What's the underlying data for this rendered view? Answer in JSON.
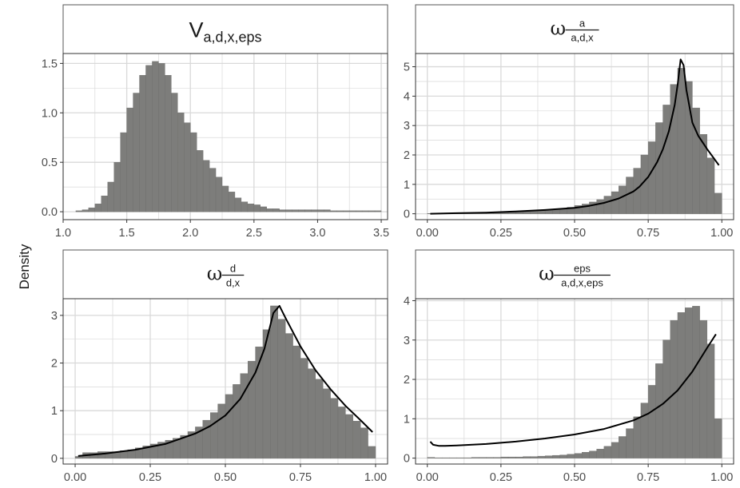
{
  "y_axis_label": "Density",
  "colors": {
    "bar_fill": "#7d7d7b",
    "bar_stroke": "#6e6e6c",
    "curve": "#000000",
    "grid": "#d9d9d9",
    "panel_border": "#333333",
    "strip_border": "#555555"
  },
  "chart_data": [
    {
      "type": "bar",
      "title": "V",
      "title_subscript": "a,d,x,eps",
      "bin_width": 0.05,
      "bin_start": 1.1,
      "values": [
        0.01,
        0.02,
        0.04,
        0.08,
        0.16,
        0.3,
        0.5,
        0.8,
        1.05,
        1.2,
        1.38,
        1.48,
        1.52,
        1.5,
        1.38,
        1.2,
        1.0,
        0.9,
        0.8,
        0.62,
        0.52,
        0.44,
        0.35,
        0.26,
        0.2,
        0.14,
        0.1,
        0.08,
        0.07,
        0.05,
        0.03,
        0.03,
        0.02,
        0.02,
        0.02,
        0.02,
        0.02,
        0.02,
        0.02,
        0.02,
        0.01,
        0.01,
        0.01,
        0.01,
        0.01,
        0.01,
        0.01,
        0.01
      ],
      "xlim": [
        1.0,
        3.55
      ],
      "ylim": [
        -0.08,
        1.6
      ],
      "xticks": [
        1.0,
        1.5,
        2.0,
        2.5,
        3.0,
        3.5
      ],
      "xtick_labels": [
        "1.0",
        "1.5",
        "2.0",
        "2.5",
        "3.0",
        "3.5"
      ],
      "yticks": [
        0.0,
        0.5,
        1.0,
        1.5
      ],
      "ytick_labels": [
        "0.0",
        "0.5",
        "1.0",
        "1.5"
      ],
      "grid": true,
      "curve": null
    },
    {
      "type": "bar",
      "title": "ω",
      "title_numerator": "a",
      "title_denominator": "a,d,x",
      "bin_width": 0.025,
      "bin_start": 0.0,
      "values": [
        0.01,
        0.02,
        0.02,
        0.02,
        0.02,
        0.03,
        0.03,
        0.04,
        0.04,
        0.05,
        0.06,
        0.07,
        0.08,
        0.09,
        0.1,
        0.11,
        0.13,
        0.16,
        0.18,
        0.22,
        0.28,
        0.33,
        0.4,
        0.48,
        0.6,
        0.75,
        0.95,
        1.25,
        1.55,
        2.0,
        2.45,
        3.1,
        3.7,
        4.4,
        4.95,
        4.5,
        3.6,
        2.7,
        1.9,
        0.7
      ],
      "xlim": [
        -0.04,
        1.04
      ],
      "ylim": [
        -0.2,
        5.45
      ],
      "xticks": [
        0.0,
        0.25,
        0.5,
        0.75,
        1.0
      ],
      "xtick_labels": [
        "0.00",
        "0.25",
        "0.50",
        "0.75",
        "1.00"
      ],
      "yticks": [
        0,
        1,
        2,
        3,
        4,
        5
      ],
      "ytick_labels": [
        "0",
        "1",
        "2",
        "3",
        "4",
        "5"
      ],
      "grid": true,
      "curve": {
        "x": [
          0.01,
          0.1,
          0.2,
          0.3,
          0.4,
          0.5,
          0.55,
          0.6,
          0.65,
          0.7,
          0.72,
          0.75,
          0.78,
          0.8,
          0.82,
          0.84,
          0.85,
          0.86,
          0.87,
          0.88,
          0.9,
          0.92,
          0.95,
          0.99
        ],
        "y": [
          0.0,
          0.02,
          0.04,
          0.08,
          0.13,
          0.2,
          0.27,
          0.37,
          0.52,
          0.76,
          0.92,
          1.25,
          1.75,
          2.2,
          2.8,
          3.7,
          4.4,
          5.25,
          5.05,
          4.2,
          3.1,
          2.65,
          2.2,
          1.65
        ]
      }
    },
    {
      "type": "bar",
      "title": "ω",
      "title_numerator": "d",
      "title_denominator": "d,x",
      "bin_width": 0.025,
      "bin_start": 0.0,
      "values": [
        0.04,
        0.12,
        0.12,
        0.14,
        0.14,
        0.14,
        0.16,
        0.18,
        0.22,
        0.26,
        0.3,
        0.34,
        0.38,
        0.42,
        0.48,
        0.56,
        0.66,
        0.8,
        0.96,
        1.14,
        1.34,
        1.55,
        1.78,
        2.04,
        2.34,
        2.7,
        3.2,
        2.92,
        2.62,
        2.36,
        2.1,
        1.88,
        1.66,
        1.46,
        1.26,
        1.08,
        0.92,
        0.78,
        0.64,
        0.25
      ],
      "xlim": [
        -0.04,
        1.04
      ],
      "ylim": [
        -0.12,
        3.35
      ],
      "xticks": [
        0.0,
        0.25,
        0.5,
        0.75,
        1.0
      ],
      "xtick_labels": [
        "0.00",
        "0.25",
        "0.50",
        "0.75",
        "1.00"
      ],
      "yticks": [
        0,
        1,
        2,
        3
      ],
      "ytick_labels": [
        "0",
        "1",
        "2",
        "3"
      ],
      "grid": true,
      "curve": {
        "x": [
          0.01,
          0.1,
          0.2,
          0.3,
          0.4,
          0.45,
          0.5,
          0.55,
          0.6,
          0.63,
          0.66,
          0.68,
          0.7,
          0.75,
          0.8,
          0.85,
          0.9,
          0.95,
          0.99
        ],
        "y": [
          0.05,
          0.1,
          0.18,
          0.3,
          0.52,
          0.68,
          0.9,
          1.25,
          1.8,
          2.3,
          3.05,
          3.2,
          2.95,
          2.35,
          1.85,
          1.45,
          1.1,
          0.8,
          0.55
        ]
      }
    },
    {
      "type": "bar",
      "title": "ω",
      "title_numerator": "eps",
      "title_denominator": "a,d,x,eps",
      "bin_width": 0.025,
      "bin_start": 0.0,
      "values": [
        0.02,
        0.01,
        0.01,
        0.01,
        0.01,
        0.01,
        0.02,
        0.02,
        0.02,
        0.02,
        0.03,
        0.03,
        0.03,
        0.04,
        0.04,
        0.05,
        0.06,
        0.07,
        0.08,
        0.1,
        0.12,
        0.15,
        0.18,
        0.23,
        0.3,
        0.4,
        0.55,
        0.75,
        1.05,
        1.4,
        1.85,
        2.4,
        3.0,
        3.5,
        3.7,
        3.82,
        3.86,
        3.5,
        2.9,
        1.0
      ],
      "xlim": [
        -0.04,
        1.04
      ],
      "ylim": [
        -0.15,
        4.05
      ],
      "xticks": [
        0.0,
        0.25,
        0.5,
        0.75,
        1.0
      ],
      "xtick_labels": [
        "0.00",
        "0.25",
        "0.50",
        "0.75",
        "1.00"
      ],
      "yticks": [
        0,
        1,
        2,
        3,
        4
      ],
      "ytick_labels": [
        "0",
        "1",
        "2",
        "3",
        "4"
      ],
      "grid": true,
      "curve": {
        "x": [
          0.01,
          0.02,
          0.04,
          0.06,
          0.1,
          0.2,
          0.3,
          0.4,
          0.5,
          0.6,
          0.7,
          0.75,
          0.8,
          0.85,
          0.9,
          0.95,
          0.98
        ],
        "y": [
          0.42,
          0.34,
          0.31,
          0.31,
          0.32,
          0.36,
          0.42,
          0.5,
          0.6,
          0.74,
          0.96,
          1.13,
          1.38,
          1.72,
          2.2,
          2.8,
          3.15
        ]
      }
    }
  ]
}
